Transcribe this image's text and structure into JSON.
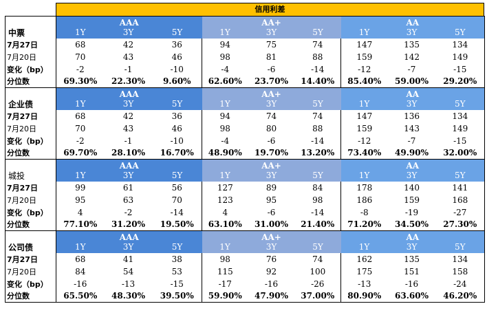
{
  "title": "信用利差",
  "groups": [
    "AAA",
    "AA+",
    "AA"
  ],
  "tenors": [
    "1Y",
    "3Y",
    "5Y"
  ],
  "row_labels": [
    "7月27日",
    "7月20日",
    "变化（bp）",
    "分位数"
  ],
  "colors": {
    "title_bg": "#ffc000",
    "aaa_bg": "#4a86d6",
    "aaplus_bg": "#8eaadb",
    "aa_bg": "#6aa3e6"
  },
  "sections": [
    {
      "name": "中票",
      "rows": [
        [
          "68",
          "42",
          "36",
          "94",
          "75",
          "74",
          "147",
          "135",
          "134"
        ],
        [
          "70",
          "43",
          "46",
          "98",
          "81",
          "88",
          "159",
          "142",
          "149"
        ],
        [
          "-2",
          "-1",
          "-10",
          "-4",
          "-6",
          "-14",
          "-12",
          "-7",
          "-15"
        ],
        [
          "69.30%",
          "22.30%",
          "9.60%",
          "62.60%",
          "23.70%",
          "14.40%",
          "85.40%",
          "59.00%",
          "29.20%"
        ]
      ]
    },
    {
      "name": "企业债",
      "rows": [
        [
          "68",
          "42",
          "36",
          "94",
          "74",
          "74",
          "147",
          "136",
          "134"
        ],
        [
          "70",
          "43",
          "46",
          "98",
          "80",
          "88",
          "159",
          "143",
          "149"
        ],
        [
          "-2",
          "-1",
          "-10",
          "-4",
          "-6",
          "-14",
          "-12",
          "-7",
          "-15"
        ],
        [
          "69.70%",
          "28.10%",
          "16.70%",
          "48.90%",
          "19.70%",
          "13.20%",
          "73.40%",
          "49.90%",
          "32.00%"
        ]
      ]
    },
    {
      "name": "城投",
      "rows": [
        [
          "99",
          "61",
          "56",
          "127",
          "89",
          "84",
          "178",
          "140",
          "141"
        ],
        [
          "95",
          "63",
          "70",
          "123",
          "95",
          "98",
          "186",
          "159",
          "168"
        ],
        [
          "4",
          "-2",
          "-14",
          "4",
          "-6",
          "-14",
          "-8",
          "-19",
          "-27"
        ],
        [
          "77.10%",
          "31.20%",
          "19.50%",
          "63.10%",
          "31.00%",
          "21.40%",
          "71.20%",
          "34.50%",
          "27.30%"
        ]
      ]
    },
    {
      "name": "公司债",
      "rows": [
        [
          "68",
          "41",
          "38",
          "98",
          "76",
          "74",
          "162",
          "135",
          "134"
        ],
        [
          "84",
          "54",
          "53",
          "115",
          "92",
          "100",
          "175",
          "151",
          "158"
        ],
        [
          "-16",
          "-13",
          "-15",
          "-17",
          "-16",
          "-26",
          "-13",
          "-16",
          "-24"
        ],
        [
          "65.50%",
          "48.30%",
          "39.50%",
          "59.90%",
          "47.90%",
          "37.00%",
          "80.90%",
          "63.60%",
          "46.20%"
        ]
      ]
    }
  ]
}
